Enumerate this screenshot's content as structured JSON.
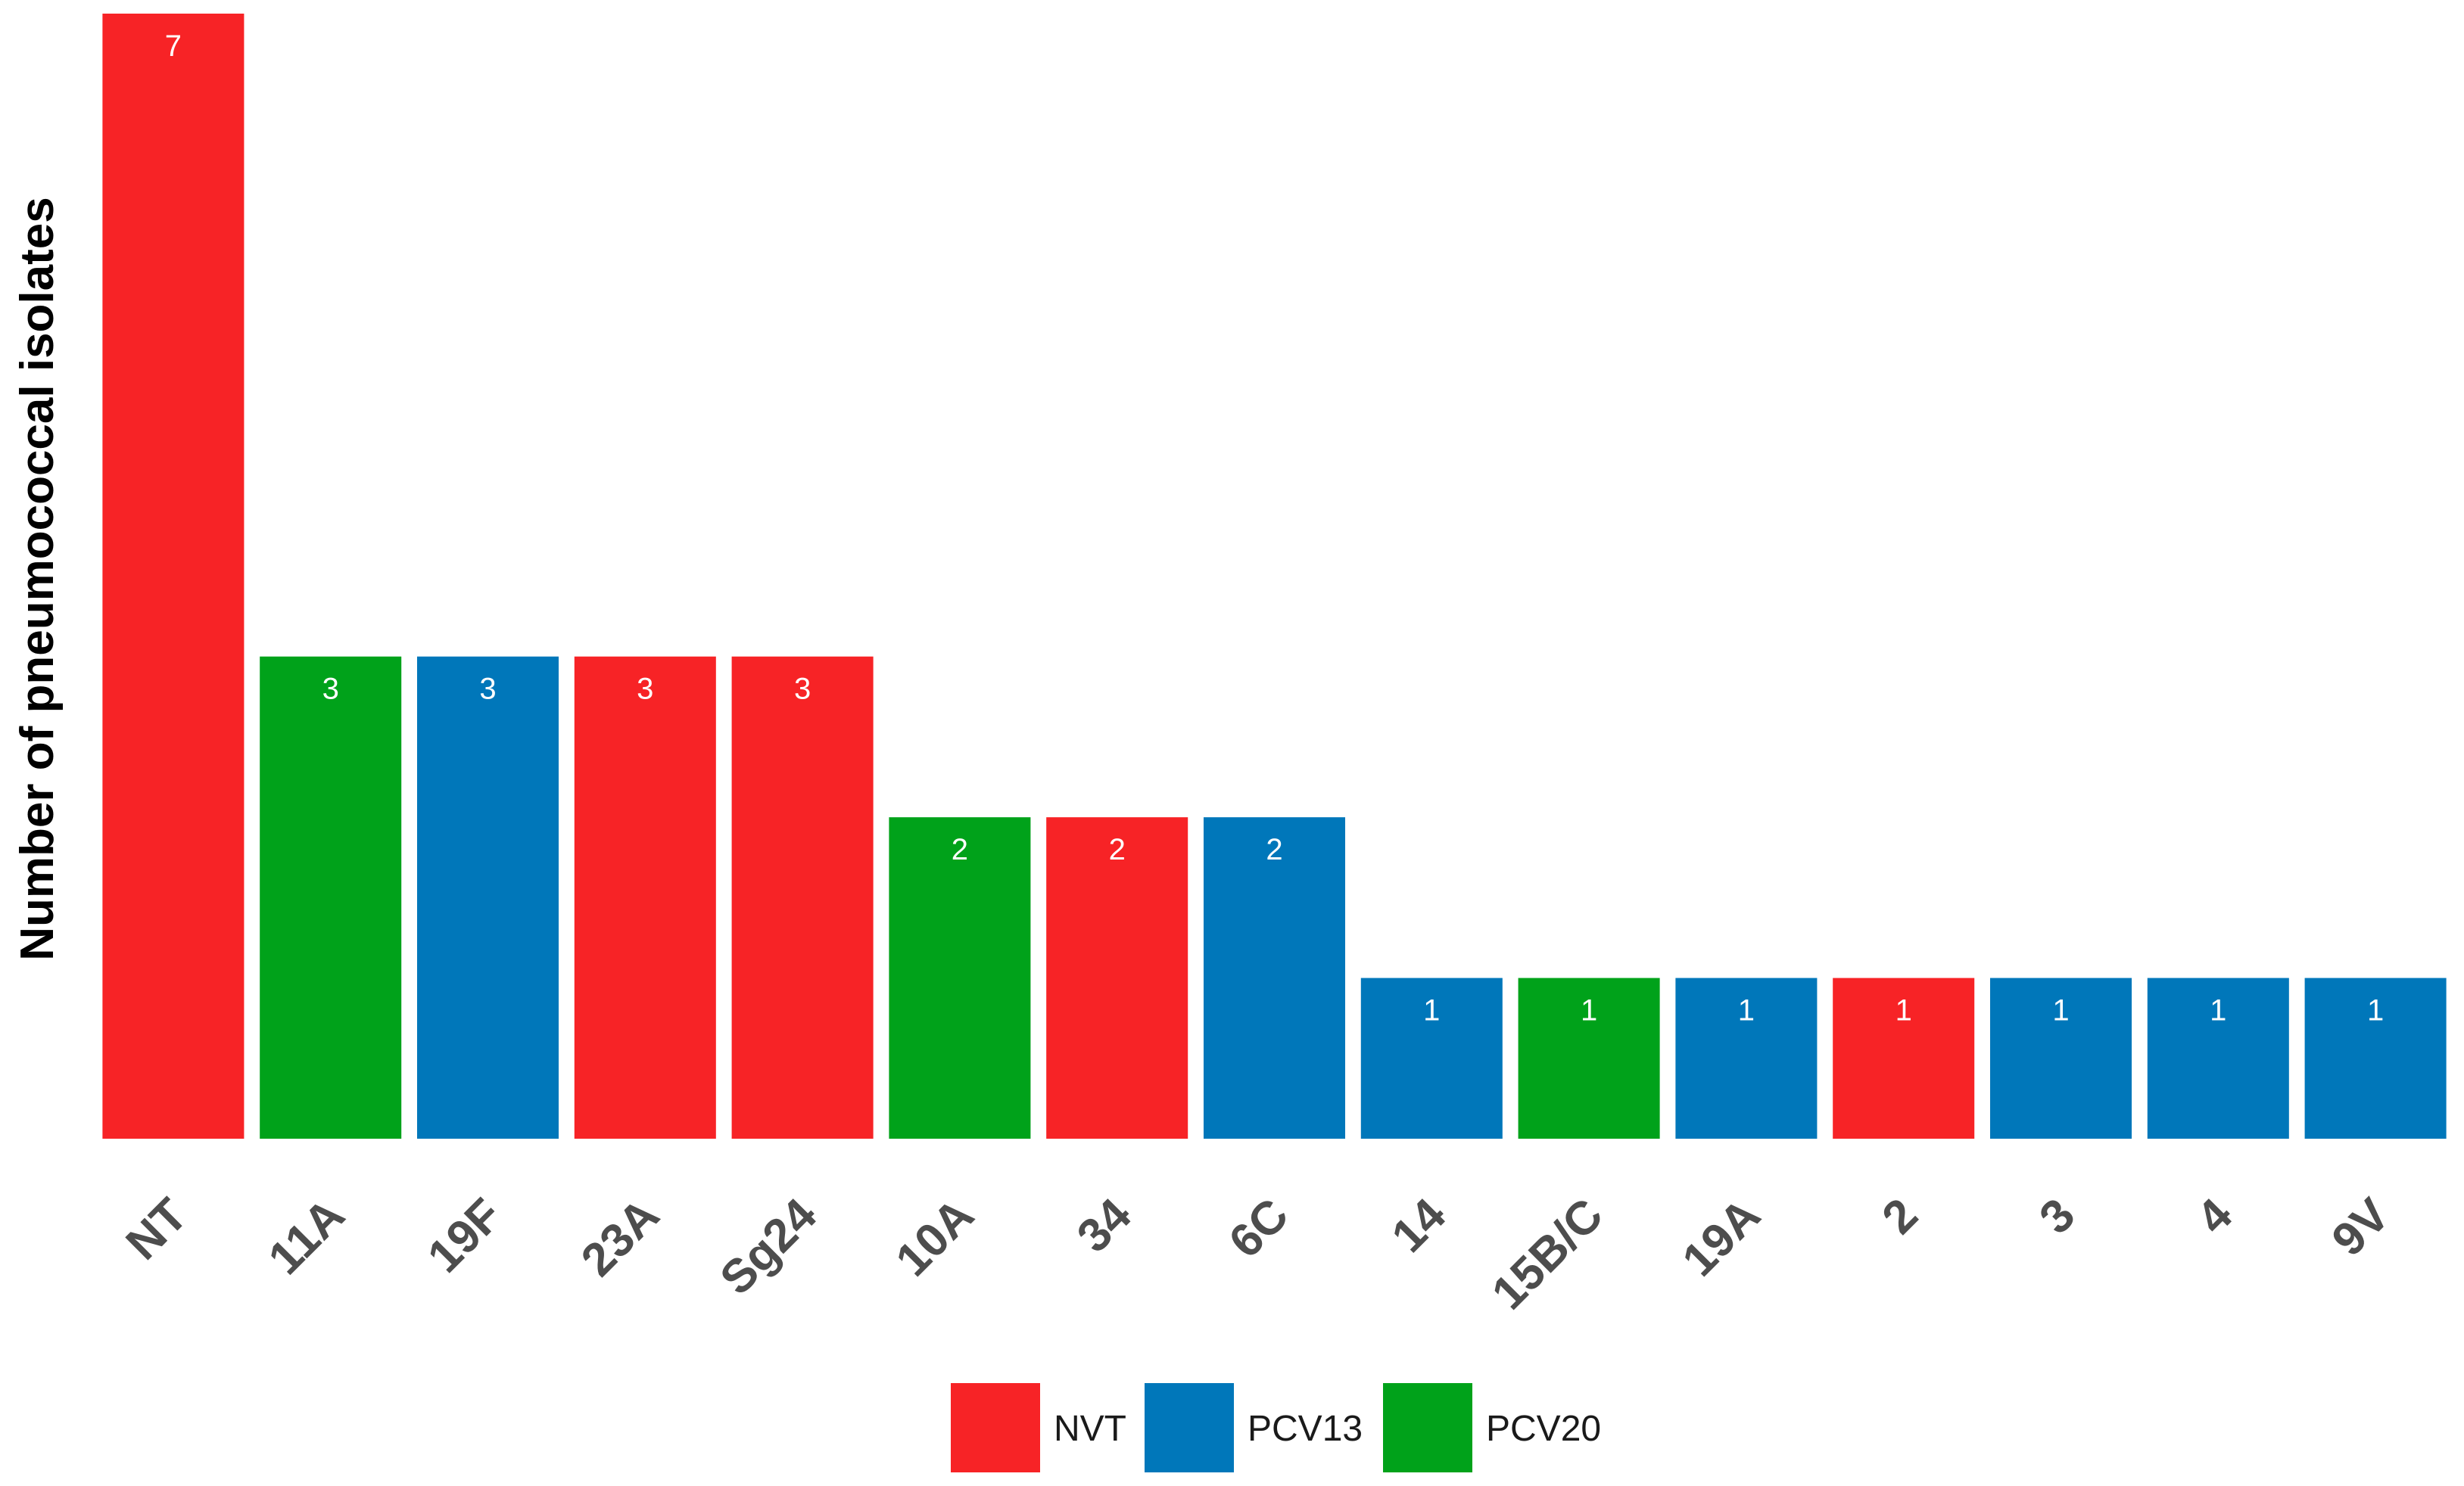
{
  "chart_data": {
    "type": "bar",
    "title": "",
    "xlabel": "",
    "ylabel": "Number of pneumococcal isolates",
    "ylim": [
      0,
      7
    ],
    "grid": false,
    "legend_position": "bottom",
    "categories": [
      "NT",
      "11A",
      "19F",
      "23A",
      "Sg24",
      "10A",
      "34",
      "6C",
      "14",
      "15B/C",
      "19A",
      "2",
      "3",
      "4",
      "9V"
    ],
    "values": [
      7,
      3,
      3,
      3,
      3,
      2,
      2,
      2,
      1,
      1,
      1,
      1,
      1,
      1,
      1
    ],
    "groups": [
      "NVT",
      "PCV20",
      "PCV13",
      "NVT",
      "NVT",
      "PCV20",
      "NVT",
      "PCV13",
      "PCV13",
      "PCV20",
      "PCV13",
      "NVT",
      "PCV13",
      "PCV13",
      "PCV13"
    ],
    "legend": [
      {
        "name": "NVT",
        "color": "#f72326"
      },
      {
        "name": "PCV13",
        "color": "#0077ba"
      },
      {
        "name": "PCV20",
        "color": "#00a21a"
      }
    ]
  }
}
